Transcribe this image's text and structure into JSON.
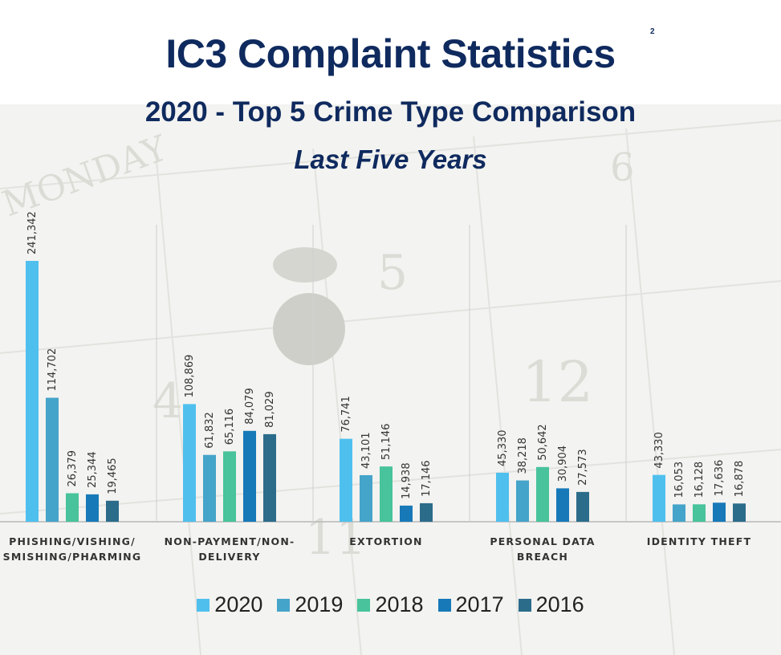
{
  "header": {
    "title": "IC3 Complaint Statistics",
    "footnote": "2",
    "subtitle": "2020 - Top 5 Crime Type Comparison",
    "subtitle2": "Last Five Years"
  },
  "colors": {
    "title": "#0f2a5e",
    "2020": "#4fc0ee",
    "2019": "#45a4c9",
    "2018": "#48c39c",
    "2017": "#1779b8",
    "2016": "#2b6c8a"
  },
  "chart_data": {
    "type": "bar",
    "title": "IC3 Complaint Statistics",
    "categories": [
      [
        "PHISHING/VISHING/",
        "SMISHING/PHARMING"
      ],
      [
        "NON-PAYMENT/NON-",
        "DELIVERY"
      ],
      [
        "EXTORTION"
      ],
      [
        "PERSONAL DATA",
        "BREACH"
      ],
      [
        "IDENTITY THEFT"
      ]
    ],
    "series": [
      {
        "name": "2020",
        "values": [
          241342,
          108869,
          76741,
          45330,
          43330
        ],
        "labels": [
          "241,342",
          "108,869",
          "76,741",
          "45,330",
          "43,330"
        ]
      },
      {
        "name": "2019",
        "values": [
          114702,
          61832,
          43101,
          38218,
          16053
        ],
        "labels": [
          "114,702",
          "61,832",
          "43,101",
          "38,218",
          "16,053"
        ]
      },
      {
        "name": "2018",
        "values": [
          26379,
          65116,
          51146,
          50642,
          16128
        ],
        "labels": [
          "26,379",
          "65,116",
          "51,146",
          "50,642",
          "16,128"
        ]
      },
      {
        "name": "2017",
        "values": [
          25344,
          84079,
          14938,
          30904,
          17636
        ],
        "labels": [
          "25,344",
          "84,079",
          "14,938",
          "30,904",
          "17,636"
        ]
      },
      {
        "name": "2016",
        "values": [
          19465,
          81029,
          17146,
          27573,
          16878
        ],
        "labels": [
          "19,465",
          "81,029",
          "17,146",
          "27,573",
          "16,878"
        ]
      }
    ],
    "legend_position": "bottom",
    "grid": false
  }
}
